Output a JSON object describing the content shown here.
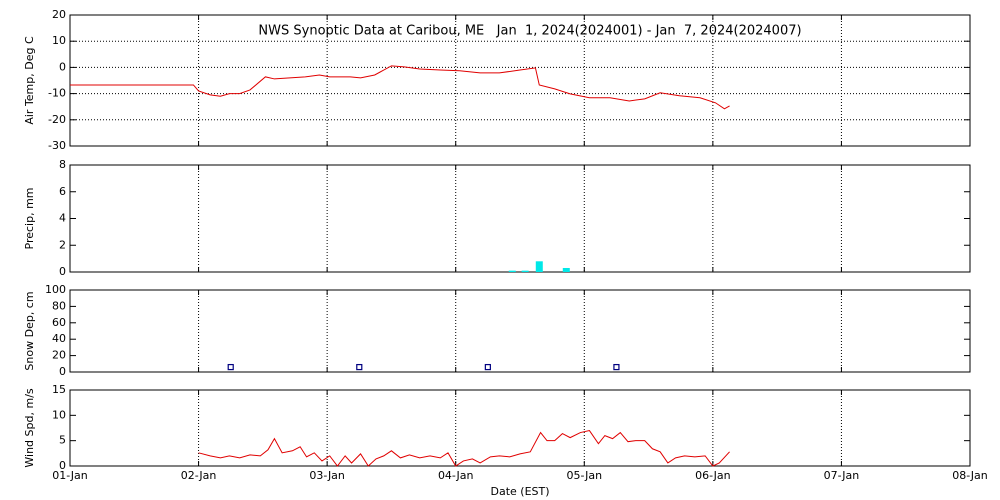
{
  "chart_data": [
    {
      "type": "line",
      "title": "NWS Synoptic Data at Caribou, ME   Jan  1, 2024(2024001) - Jan  7, 2024(2024007)",
      "ylabel": "Air Temp, Deg C",
      "color": "#e00000",
      "grid": "both",
      "ylim": [
        -30,
        20
      ],
      "yticks": [
        -30,
        -20,
        -10,
        0,
        10,
        20
      ],
      "x": [
        0,
        0.96,
        1.0,
        1.09,
        1.17,
        1.24,
        1.32,
        1.4,
        1.52,
        1.59,
        1.71,
        1.83,
        1.94,
        2.02,
        2.18,
        2.26,
        2.37,
        2.5,
        2.6,
        2.72,
        2.88,
        3.03,
        3.19,
        3.34,
        3.5,
        3.62,
        3.65,
        3.77,
        3.89,
        4.04,
        4.2,
        4.35,
        4.47,
        4.59,
        4.74,
        4.9,
        5.02,
        5.09,
        5.13
      ],
      "values": [
        -6.7,
        -6.7,
        -9,
        -10.5,
        -11,
        -10,
        -10,
        -8.6,
        -3.6,
        -4.4,
        -4,
        -3.6,
        -2.9,
        -3.6,
        -3.6,
        -4,
        -2.9,
        0.6,
        0.2,
        -0.6,
        -1,
        -1.3,
        -2.1,
        -2.1,
        -1,
        -0.2,
        -6.7,
        -8.2,
        -10.1,
        -11.6,
        -11.6,
        -12.8,
        -12,
        -9.7,
        -10.8,
        -11.6,
        -13.5,
        -15.8,
        -14.7
      ]
    },
    {
      "type": "bar",
      "ylabel": "Precip, mm",
      "color": "#00e8e8",
      "grid": "x",
      "ylim": [
        0,
        8
      ],
      "yticks": [
        0,
        2,
        4,
        6,
        8
      ],
      "x": [
        3.44,
        3.54,
        3.65,
        3.86
      ],
      "values": [
        0.1,
        0.1,
        0.8,
        0.3
      ]
    },
    {
      "type": "scatter",
      "ylabel": "Snow Dep, cm",
      "color": "#000080",
      "grid": "x",
      "ylim": [
        0,
        100
      ],
      "yticks": [
        0,
        20,
        40,
        60,
        80,
        100
      ],
      "x": [
        1.25,
        2.25,
        3.25,
        4.25
      ],
      "values": [
        6,
        6,
        6,
        6
      ]
    },
    {
      "type": "line",
      "ylabel": "Wind Spd, m/s",
      "xlabel": "Date (EST)",
      "color": "#e00000",
      "grid": "x",
      "ylim": [
        0,
        15
      ],
      "yticks": [
        0,
        5,
        10,
        15
      ],
      "xlim": [
        0,
        7
      ],
      "xticks": [
        {
          "value": 0,
          "label": "01-Jan"
        },
        {
          "value": 1,
          "label": "02-Jan"
        },
        {
          "value": 2,
          "label": "03-Jan"
        },
        {
          "value": 3,
          "label": "04-Jan"
        },
        {
          "value": 4,
          "label": "05-Jan"
        },
        {
          "value": 5,
          "label": "06-Jan"
        },
        {
          "value": 6,
          "label": "07-Jan"
        },
        {
          "value": 7,
          "label": "08-Jan"
        }
      ],
      "x": [
        1.0,
        1.09,
        1.17,
        1.24,
        1.32,
        1.4,
        1.48,
        1.54,
        1.59,
        1.65,
        1.73,
        1.79,
        1.84,
        1.9,
        1.96,
        2.02,
        2.08,
        2.14,
        2.19,
        2.26,
        2.32,
        2.38,
        2.44,
        2.5,
        2.57,
        2.64,
        2.72,
        2.8,
        2.88,
        2.94,
        3.0,
        3.06,
        3.13,
        3.19,
        3.27,
        3.34,
        3.42,
        3.5,
        3.58,
        3.66,
        3.71,
        3.77,
        3.83,
        3.89,
        3.97,
        4.04,
        4.11,
        4.16,
        4.22,
        4.28,
        4.34,
        4.4,
        4.47,
        4.53,
        4.59,
        4.65,
        4.71,
        4.78,
        4.86,
        4.94,
        5.0,
        5.05,
        5.13
      ],
      "values": [
        2.6,
        2,
        1.6,
        2,
        1.6,
        2.2,
        2,
        3.2,
        5.4,
        2.6,
        3,
        3.8,
        1.8,
        2.6,
        1,
        2,
        0,
        2,
        0.6,
        2.4,
        0,
        1.4,
        2,
        3,
        1.6,
        2.2,
        1.6,
        2,
        1.6,
        2.6,
        0,
        1,
        1.4,
        0.6,
        1.8,
        2,
        1.8,
        2.4,
        2.8,
        6.6,
        5,
        5,
        6.4,
        5.6,
        6.6,
        7,
        4.4,
        6,
        5.4,
        6.6,
        4.8,
        5,
        5,
        3.4,
        2.8,
        0.6,
        1.6,
        2,
        1.8,
        2,
        0,
        0.6,
        2.8
      ]
    }
  ]
}
